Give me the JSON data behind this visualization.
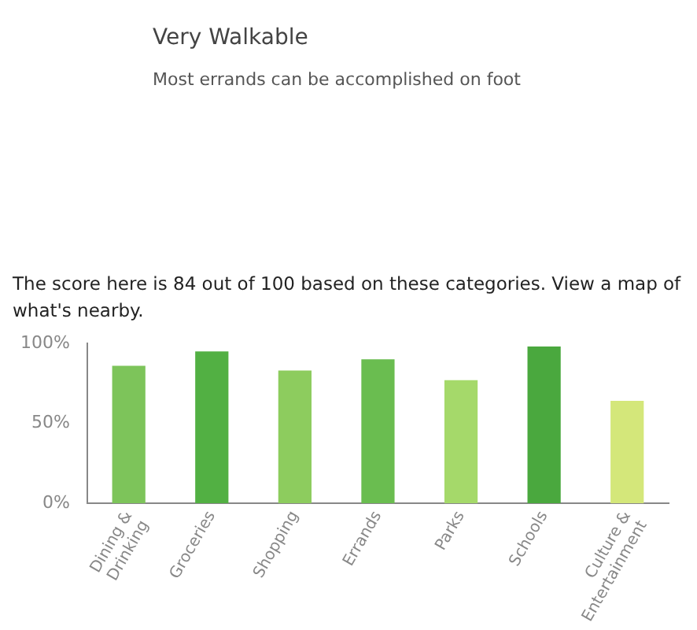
{
  "chart_data": {
    "type": "bar",
    "title": "Very Walkable",
    "subtitle": "Most errands can be accomplished on foot",
    "annotations": [
      "The score here is 84 out of 100 based on these categories. View a map of what's nearby."
    ],
    "categories": [
      "Dining & Drinking",
      "Groceries",
      "Shopping",
      "Errands",
      "Parks",
      "Schools",
      "Culture & Entertainment"
    ],
    "values": [
      86,
      95,
      83,
      90,
      77,
      98,
      64
    ],
    "colors": [
      "#7dc45a",
      "#52b043",
      "#8dcc5e",
      "#6abd50",
      "#a5d96a",
      "#4aa83e",
      "#d4e77a"
    ],
    "ylim": [
      0,
      100
    ],
    "yticks": [
      {
        "value": 0,
        "label": "0%"
      },
      {
        "value": 50,
        "label": "50%"
      },
      {
        "value": 100,
        "label": "100%"
      }
    ],
    "grid": false,
    "legend": false
  }
}
